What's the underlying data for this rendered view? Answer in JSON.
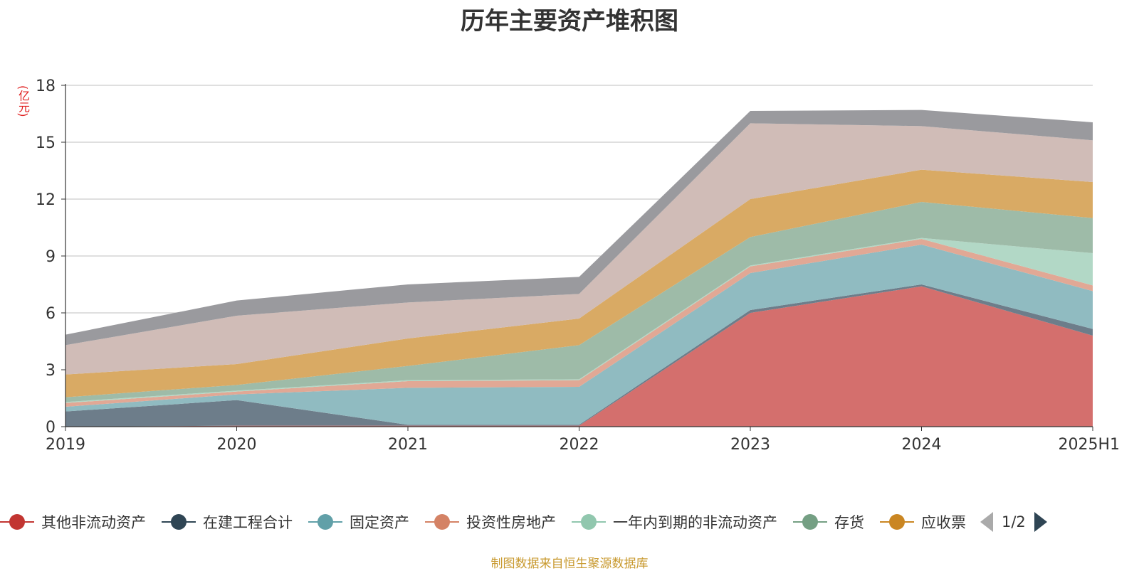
{
  "chart_data": {
    "type": "area",
    "stacked": true,
    "title": "历年主要资产堆积图",
    "unit_label": "(亿元)",
    "categories": [
      "2019",
      "2020",
      "2021",
      "2022",
      "2023",
      "2024",
      "2025H1"
    ],
    "ylim": [
      0,
      18
    ],
    "yticks": [
      0,
      3,
      6,
      9,
      12,
      15,
      18
    ],
    "grid": true,
    "legend_position": "bottom",
    "series": [
      {
        "name": "其他非流动资产",
        "color": "#c23531",
        "fill": "#d46f6d",
        "values": [
          0.0,
          0.05,
          0.05,
          0.05,
          6.0,
          7.4,
          4.8
        ]
      },
      {
        "name": "在建工程合计",
        "color": "#2f4554",
        "fill": "#6d7d8a",
        "values": [
          0.8,
          1.35,
          0.05,
          0.05,
          0.15,
          0.1,
          0.35
        ]
      },
      {
        "name": "固定资产",
        "color": "#61a0a8",
        "fill": "#90bbc1",
        "values": [
          0.25,
          0.3,
          1.95,
          2.0,
          1.95,
          2.1,
          2.0
        ]
      },
      {
        "name": "投资性房地产",
        "color": "#d48265",
        "fill": "#e1a895",
        "values": [
          0.2,
          0.15,
          0.35,
          0.35,
          0.35,
          0.3,
          0.3
        ]
      },
      {
        "name": "一年内到期的非流动资产",
        "color": "#91c7ae",
        "fill": "#b2d8c6",
        "values": [
          0.05,
          0.05,
          0.05,
          0.05,
          0.05,
          0.05,
          1.7
        ]
      },
      {
        "name": "存货",
        "color": "#749f83",
        "fill": "#9ebba8",
        "values": [
          0.25,
          0.3,
          0.75,
          1.8,
          1.5,
          1.9,
          1.85
        ]
      },
      {
        "name": "应收票",
        "color": "#ca8622",
        "fill": "#d9aa64",
        "values": [
          1.2,
          1.1,
          1.45,
          1.4,
          2.0,
          1.7,
          1.9
        ]
      },
      {
        "name": "",
        "color": "#bda29a",
        "fill": "#d0bcb7",
        "values": [
          1.55,
          2.55,
          1.9,
          1.3,
          4.0,
          2.3,
          2.2
        ]
      },
      {
        "name": "",
        "color": "#6e7074",
        "fill": "#9a9a9e",
        "values": [
          0.55,
          0.8,
          0.95,
          0.9,
          0.65,
          0.85,
          0.95
        ]
      }
    ]
  },
  "legend": {
    "items": [
      {
        "label": "其他非流动资产",
        "color": "#c23531"
      },
      {
        "label": "在建工程合计",
        "color": "#2f4554"
      },
      {
        "label": "固定资产",
        "color": "#61a0a8"
      },
      {
        "label": "投资性房地产",
        "color": "#d48265"
      },
      {
        "label": "一年内到期的非流动资产",
        "color": "#91c7ae"
      },
      {
        "label": "存货",
        "color": "#749f83"
      },
      {
        "label": "应收票",
        "color": "#ca8622"
      }
    ],
    "page": "1/2"
  },
  "source": "制图数据来自恒生聚源数据库"
}
